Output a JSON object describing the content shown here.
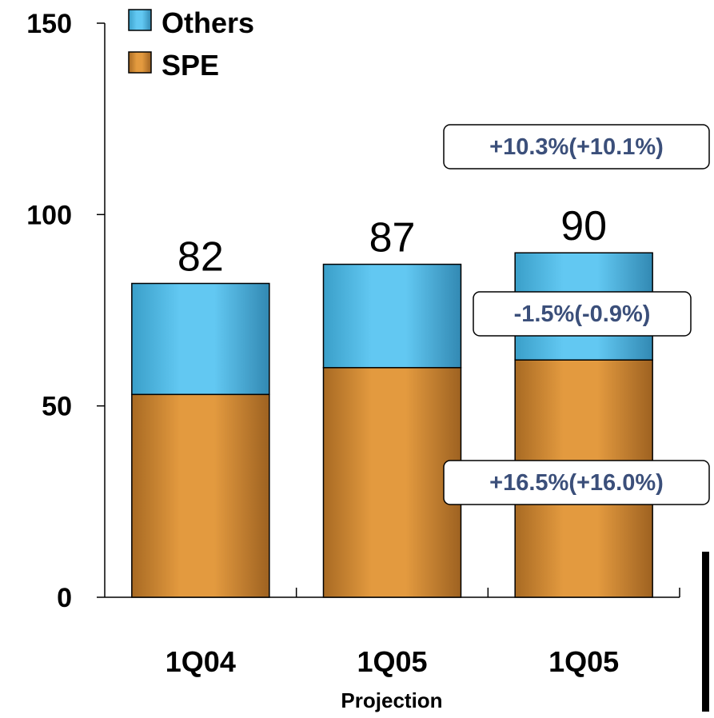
{
  "chart_data": {
    "type": "bar",
    "stacked": true,
    "categories": [
      "1Q04",
      "1Q05",
      "1Q05"
    ],
    "series": [
      {
        "name": "SPE",
        "values": [
          53,
          60,
          62
        ]
      },
      {
        "name": "Others",
        "values": [
          29,
          27,
          28
        ]
      }
    ],
    "totals": [
      "82",
      "87",
      "90"
    ],
    "ylim": [
      0,
      150
    ],
    "yticks": [
      "0",
      "50",
      "100",
      "150"
    ],
    "legend_position": "top-left",
    "category_note": "Projection",
    "annotations": [
      {
        "text": "+10.3%(+10.1%)",
        "target": "total"
      },
      {
        "text": "-1.5%(-0.9%)",
        "target": "Others"
      },
      {
        "text": "+16.5%(+16.0%)",
        "target": "SPE"
      }
    ],
    "colors": {
      "SPE": "#e09a3e",
      "Others": "#5fc4ee",
      "annotation_text": "#3b4f7a"
    }
  }
}
